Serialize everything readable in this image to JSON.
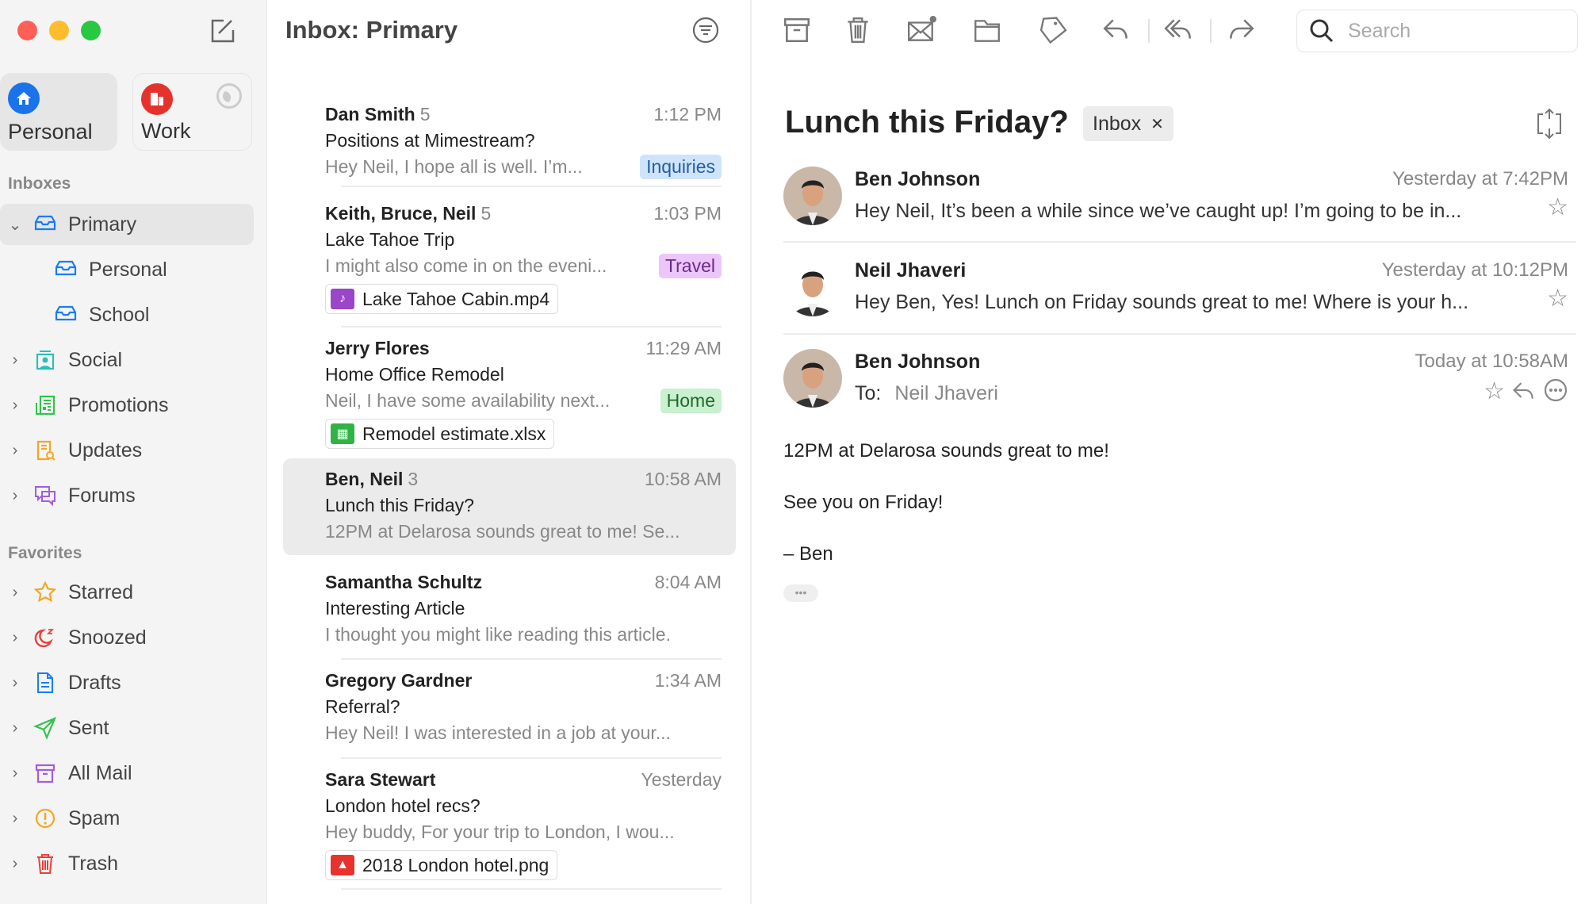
{
  "window": {
    "controls": [
      "close",
      "minimize",
      "zoom"
    ]
  },
  "sidebar": {
    "accounts": [
      {
        "label": "Personal",
        "icon": "house-icon",
        "color": "#1a73e8",
        "selected": true
      },
      {
        "label": "Work",
        "icon": "building-icon",
        "color": "#e5322d",
        "status_icon": "moon-icon"
      }
    ],
    "inboxes_header": "Inboxes",
    "inboxes": [
      {
        "label": "Primary",
        "icon": "inbox-tray-icon",
        "color": "#1a7cf5",
        "expanded": true,
        "selected": true
      },
      {
        "label": "Personal",
        "icon": "inbox-tray-icon",
        "color": "#1a7cf5",
        "child": true
      },
      {
        "label": "School",
        "icon": "inbox-tray-icon",
        "color": "#1a7cf5",
        "child": true
      },
      {
        "label": "Social",
        "icon": "person-icon",
        "color": "#2bbfb8"
      },
      {
        "label": "Promotions",
        "icon": "newspaper-icon",
        "color": "#32c24d"
      },
      {
        "label": "Updates",
        "icon": "document-search-icon",
        "color": "#f5a623"
      },
      {
        "label": "Forums",
        "icon": "chat-bubbles-icon",
        "color": "#a35de0"
      }
    ],
    "favorites_header": "Favorites",
    "favorites": [
      {
        "label": "Starred",
        "icon": "star-icon",
        "color": "#f5a623"
      },
      {
        "label": "Snoozed",
        "icon": "moon-icon",
        "color": "#e8413a"
      },
      {
        "label": "Drafts",
        "icon": "document-icon",
        "color": "#1a7cf5"
      },
      {
        "label": "Sent",
        "icon": "paper-plane-icon",
        "color": "#32c24d"
      },
      {
        "label": "All Mail",
        "icon": "archive-box-icon",
        "color": "#a35de0"
      },
      {
        "label": "Spam",
        "icon": "exclamation-icon",
        "color": "#f5a623"
      },
      {
        "label": "Trash",
        "icon": "trash-icon",
        "color": "#e8413a"
      }
    ]
  },
  "list": {
    "title": "Inbox: Primary",
    "items": [
      {
        "from": "Dan Smith",
        "count": "5",
        "time": "1:12 PM",
        "subject": "Positions at Mimestream?",
        "preview": "Hey Neil, I hope all is well. I’m...",
        "tag": {
          "label": "Inquiries",
          "bg": "#cfe4fb",
          "fg": "#1f5fa8"
        }
      },
      {
        "from": "Keith, Bruce, Neil",
        "count": "5",
        "time": "1:03 PM",
        "subject": "Lake Tahoe Trip",
        "preview": "I might also come in on the eveni...",
        "tag": {
          "label": "Travel",
          "bg": "#ecc5fa",
          "fg": "#6b2a8a"
        },
        "attachment": {
          "name": "Lake Tahoe Cabin.mp4",
          "icon": "video-file-icon",
          "color": "#9b45c9"
        }
      },
      {
        "from": "Jerry Flores",
        "count": "",
        "time": "11:29 AM",
        "subject": "Home Office Remodel",
        "preview": "Neil, I have some availability next...",
        "tag": {
          "label": "Home",
          "bg": "#c9f0cf",
          "fg": "#1f6b2c"
        },
        "attachment": {
          "name": "Remodel estimate.xlsx",
          "icon": "spreadsheet-icon",
          "color": "#2fb344"
        }
      },
      {
        "from": "Ben, Neil",
        "count": "3",
        "time": "10:58 AM",
        "subject": "Lunch this Friday?",
        "preview": "12PM at Delarosa sounds great to me! Se...",
        "selected": true
      },
      {
        "from": "Samantha Schultz",
        "count": "",
        "time": "8:04 AM",
        "subject": "Interesting Article",
        "preview": "I thought you might like reading this article."
      },
      {
        "from": "Gregory Gardner",
        "count": "",
        "time": "1:34 AM",
        "subject": "Referral?",
        "preview": "Hey Neil! I was interested in a job at your..."
      },
      {
        "from": "Sara Stewart",
        "count": "",
        "time": "Yesterday",
        "subject": "London hotel recs?",
        "preview": "Hey buddy, For your trip to London, I wou...",
        "attachment": {
          "name": "2018 London hotel.png",
          "icon": "image-file-icon",
          "color": "#e8322d"
        }
      }
    ]
  },
  "toolbar": {
    "buttons": [
      "archive",
      "trash",
      "mark-unread",
      "move-to-folder",
      "label",
      "reply",
      "reply-all",
      "forward"
    ],
    "search_placeholder": "Search"
  },
  "thread": {
    "subject": "Lunch this Friday?",
    "label_chip": "Inbox",
    "messages": [
      {
        "from": "Ben Johnson",
        "time": "Yesterday at 7:42PM",
        "preview": "Hey Neil, It’s been a while since we’ve caught up! I’m going to be in..."
      },
      {
        "from": "Neil Jhaveri",
        "time": "Yesterday at 10:12PM",
        "preview": "Hey Ben, Yes! Lunch on Friday sounds great to me! Where is your h..."
      },
      {
        "from": "Ben Johnson",
        "time": "Today at 10:58AM",
        "to_label": "To:",
        "to": "Neil Jhaveri",
        "body": [
          "12PM at Delarosa sounds great to me!",
          "See you on Friday!",
          "– Ben"
        ]
      }
    ]
  }
}
